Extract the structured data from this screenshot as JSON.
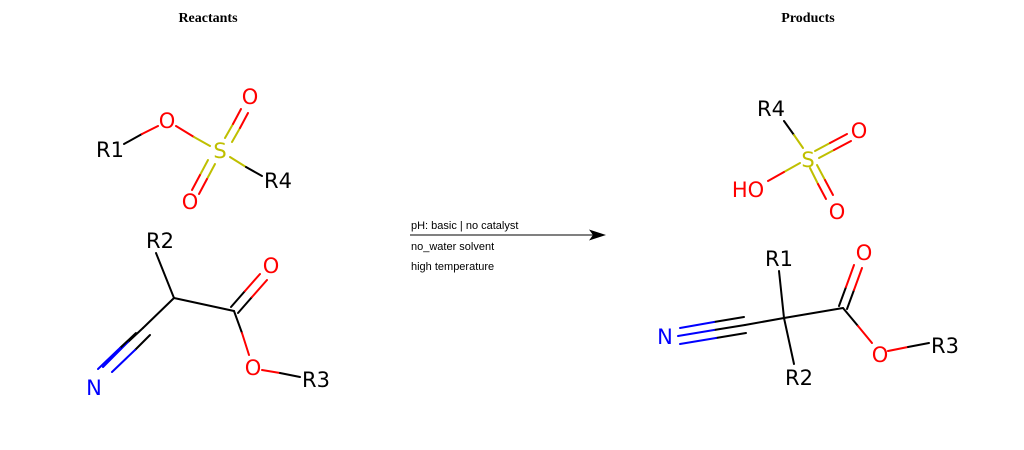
{
  "headings": {
    "reactants": "Reactants",
    "products": "Products"
  },
  "conditions": {
    "line1": "pH: basic | no catalyst",
    "line2": "no_water solvent",
    "line3": "high temperature"
  },
  "atoms": {
    "O": "O",
    "S": "S",
    "N": "N",
    "HO": "HO",
    "R1": "R1",
    "R2": "R2",
    "R3": "R3",
    "R4": "R4"
  },
  "colors": {
    "carbon_bond": "#000000",
    "oxygen": "#ff0000",
    "sulfur": "#bfbf00",
    "nitrogen": "#0000ff"
  }
}
